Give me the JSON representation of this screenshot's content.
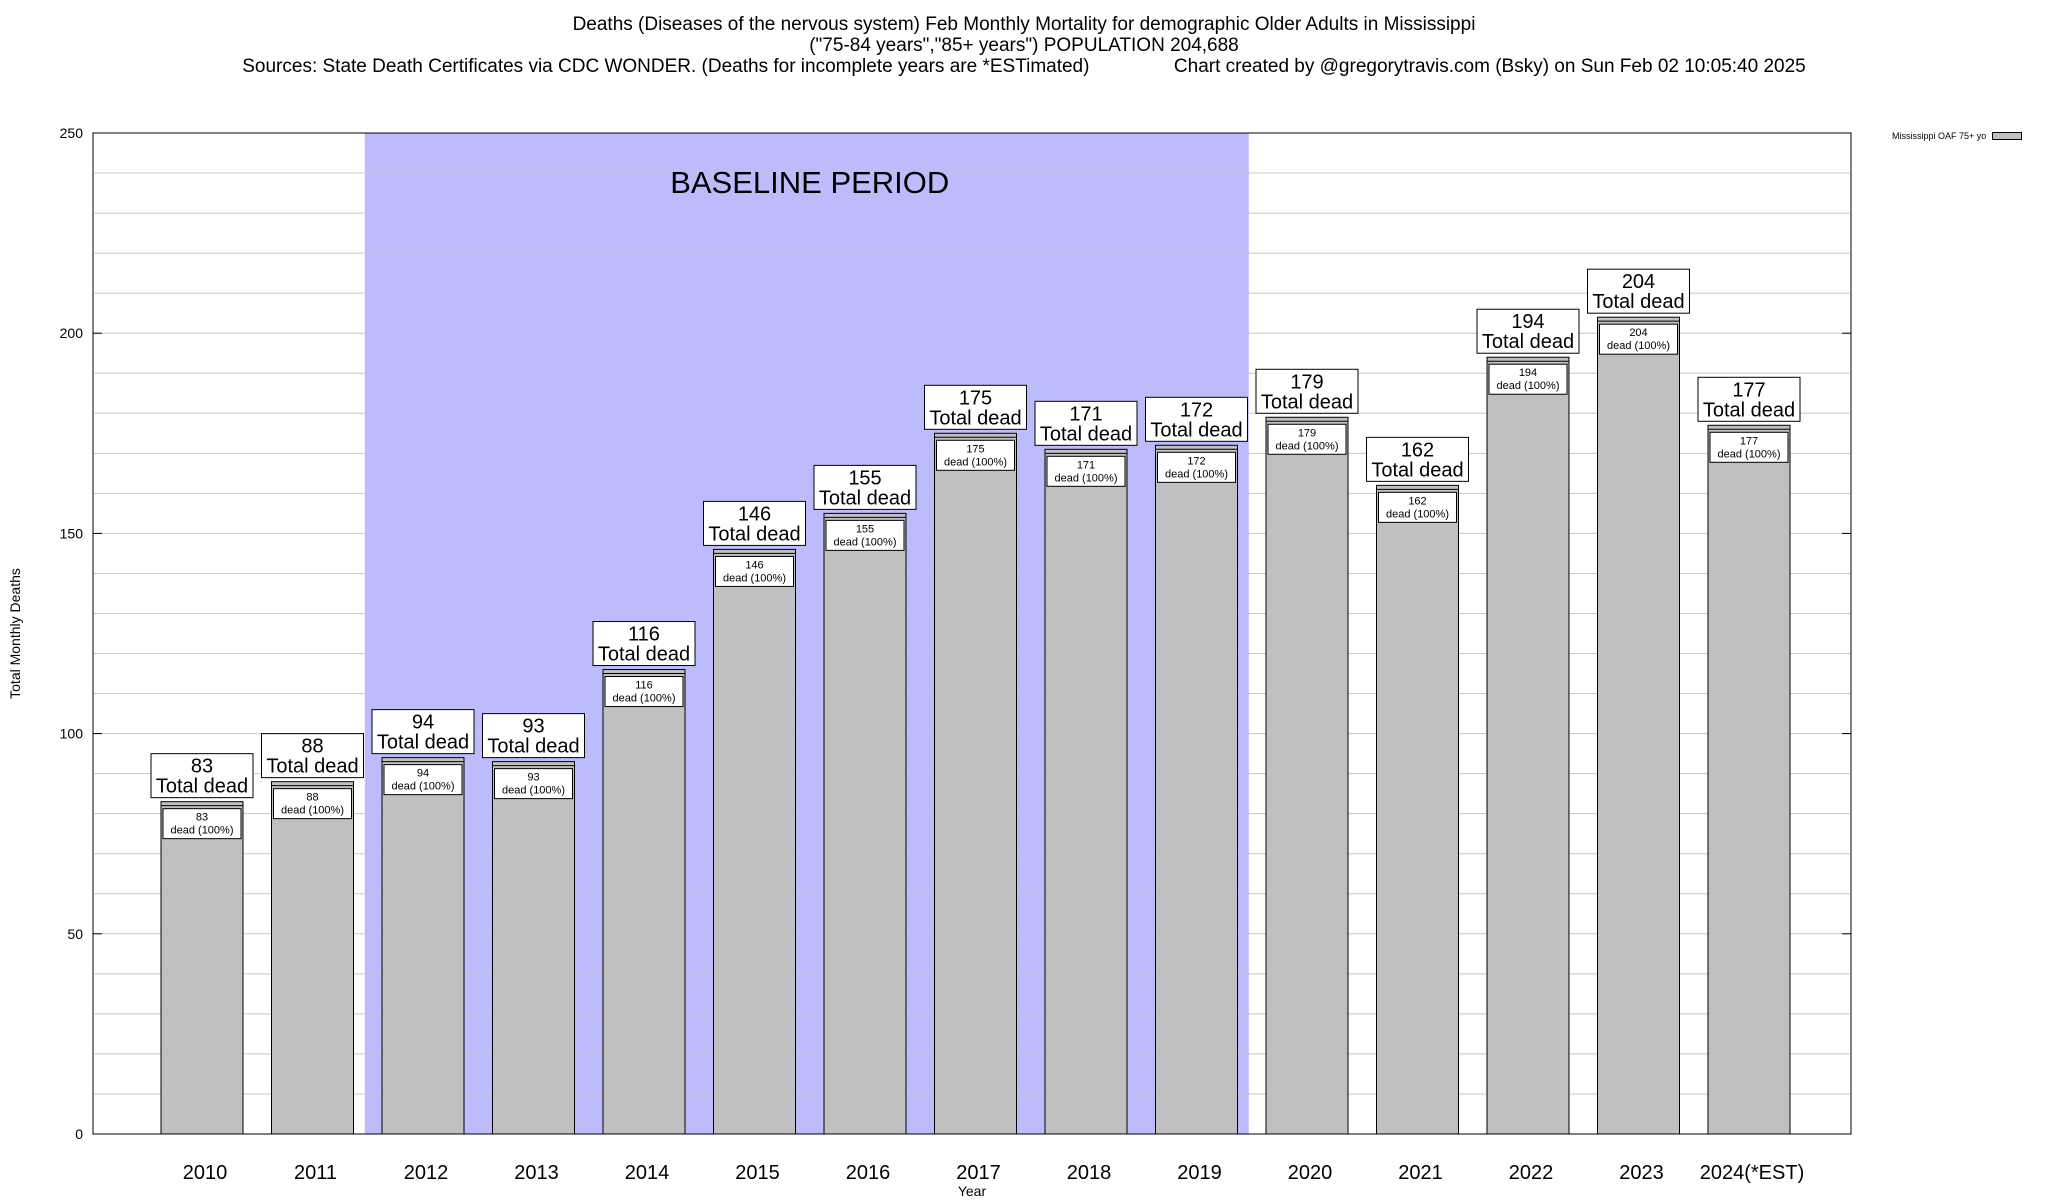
{
  "header": {
    "line1": "Deaths (Diseases of the nervous system) Feb Monthly Mortality for demographic Older Adults in Mississippi",
    "line2": "(\"75-84 years\",\"85+ years\") POPULATION 204,688",
    "line3": "Sources: State Death Certificates via CDC WONDER. (Deaths for incomplete years are *ESTimated)                Chart created by @gregorytravis.com (Bsky) on Sun Feb 02 10:05:40 2025"
  },
  "legend": {
    "label": "Mississippi OAF 75+ yo"
  },
  "colors": {
    "bar": "#c0c0c0",
    "baseline": "#bcbcfc",
    "grid": "#c8c8c8"
  },
  "chart_data": {
    "type": "bar",
    "xlabel": "Year",
    "ylabel": "Total Monthly Deaths",
    "ylim": [
      0,
      250
    ],
    "yticks": [
      0,
      50,
      100,
      150,
      200,
      250
    ],
    "minor_step": 10,
    "grid": true,
    "legend_position": "outside-top-right",
    "categories": [
      "2010",
      "2011",
      "2012",
      "2013",
      "2014",
      "2015",
      "2016",
      "2017",
      "2018",
      "2019",
      "2020",
      "2021",
      "2022",
      "2023",
      "2024(*EST)"
    ],
    "series": [
      {
        "name": "Mississippi OAF 75+ yo",
        "values": [
          83,
          88,
          94,
          93,
          116,
          146,
          155,
          175,
          171,
          172,
          179,
          162,
          194,
          204,
          177
        ]
      }
    ],
    "total_label": "Total dead",
    "inner_label": "dead (100%)",
    "baseline": {
      "label": "BASELINE PERIOD",
      "from": "2012",
      "to": "2019"
    }
  }
}
